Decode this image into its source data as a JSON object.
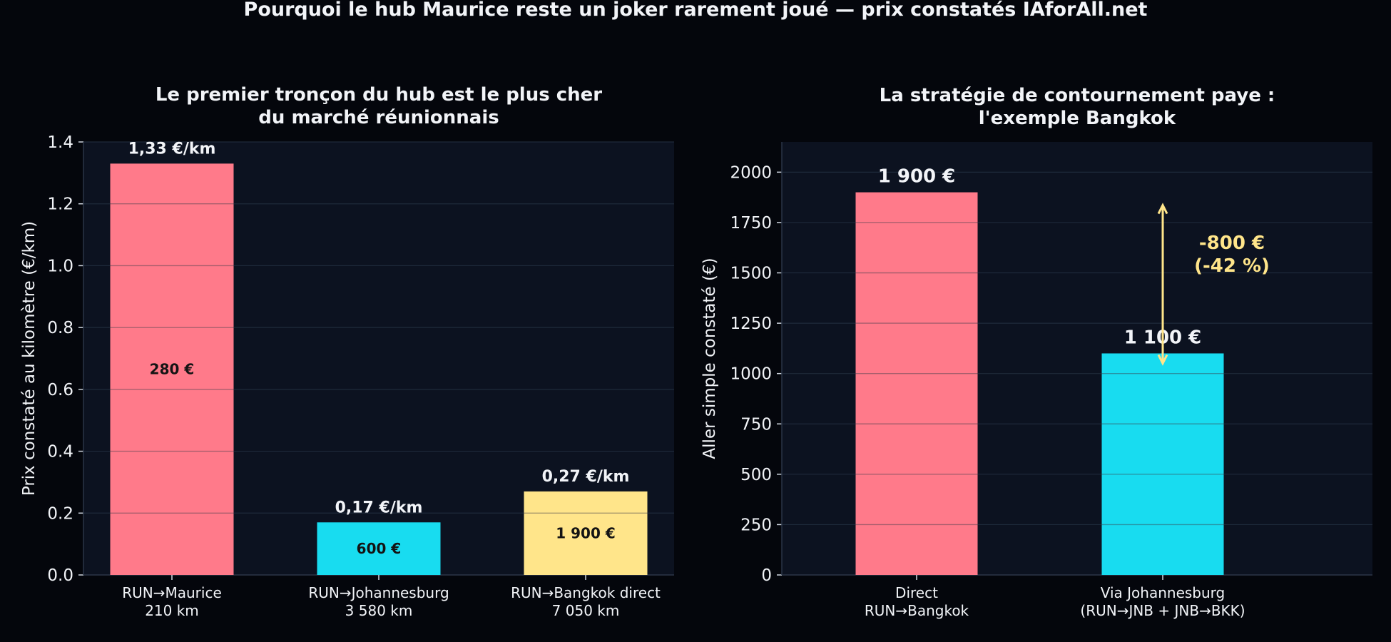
{
  "figure": {
    "title": "Pourquoi le hub Maurice reste un joker rarement joué — prix constatés IAforAll.net"
  },
  "colors": {
    "background": "#04060c",
    "panel": "#0c1220",
    "red": "#ff7a8a",
    "cyan": "#18dcf0",
    "yellow": "#ffe58a",
    "text": "#f2f4f8"
  },
  "chart_data": [
    {
      "type": "bar",
      "title_lines": [
        "Le premier tronçon du hub est le plus cher",
        "du marché réunionnais"
      ],
      "xlabel": "",
      "ylabel": "Prix constaté au kilomètre (€/km)",
      "ylim": [
        0,
        1.4
      ],
      "yticks": [
        0,
        0.2,
        0.4,
        0.6,
        0.8,
        1.0,
        1.2,
        1.4
      ],
      "ytick_labels": [
        "0.0",
        "0.2",
        "0.4",
        "0.6",
        "0.8",
        "1.0",
        "1.2",
        "1.4"
      ],
      "grid": true,
      "categories": [
        [
          "RUN→Maurice",
          "210 km"
        ],
        [
          "RUN→Johannesburg",
          "3 580 km"
        ],
        [
          "RUN→Bangkok direct",
          "7 050 km"
        ]
      ],
      "values": [
        1.33,
        0.17,
        0.27
      ],
      "colors": [
        "#ff7a8a",
        "#18dcf0",
        "#ffe58a"
      ],
      "top_labels": [
        "1,33 €/km",
        "0,17 €/km",
        "0,27 €/km"
      ],
      "inner_labels": [
        "280 €",
        "600 €",
        "1 900 €"
      ]
    },
    {
      "type": "bar",
      "title_lines": [
        "La stratégie de contournement paye :",
        "l'exemple Bangkok"
      ],
      "xlabel": "",
      "ylabel": "Aller simple constaté (€)",
      "ylim": [
        0,
        2150
      ],
      "yticks": [
        0,
        250,
        500,
        750,
        1000,
        1250,
        1500,
        1750,
        2000
      ],
      "ytick_labels": [
        "0",
        "250",
        "500",
        "750",
        "1000",
        "1250",
        "1500",
        "1750",
        "2000"
      ],
      "grid": true,
      "categories": [
        [
          "Direct",
          "RUN→Bangkok"
        ],
        [
          "Via Johannesburg",
          "(RUN→JNB + JNB→BKK)"
        ]
      ],
      "values": [
        1900,
        1100
      ],
      "colors": [
        "#ff7a8a",
        "#18dcf0"
      ],
      "top_labels": [
        "1 900 €",
        "1 100 €"
      ],
      "annotation": {
        "lines": [
          "-800 €",
          "(-42 %)"
        ],
        "from": 1100,
        "to": 1900,
        "color": "#ffe58a"
      }
    }
  ]
}
